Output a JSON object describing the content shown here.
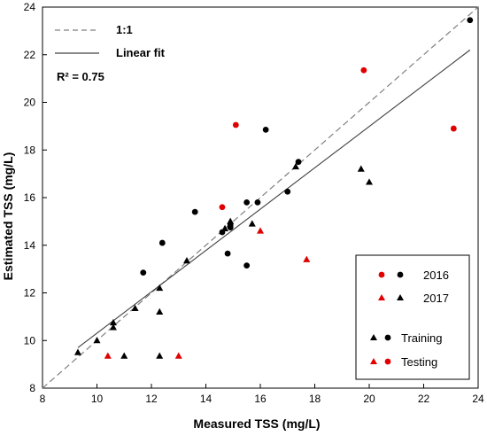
{
  "chart_data": {
    "type": "scatter",
    "xlabel": "Measured  TSS (mg/L)",
    "ylabel": "Estimated  TSS (mg/L)",
    "xlim": [
      8,
      24
    ],
    "ylim": [
      8,
      24
    ],
    "xticks": [
      "8",
      "10",
      "12",
      "14",
      "16",
      "18",
      "20",
      "22",
      "24"
    ],
    "yticks": [
      "8",
      "10",
      "12",
      "14",
      "16",
      "18",
      "20",
      "22",
      "24"
    ],
    "grid": false,
    "lines": {
      "one_to_one": {
        "label": "1:1",
        "style": "dashed",
        "color": "#808080"
      },
      "linear_fit": {
        "label": "Linear fit",
        "style": "solid",
        "color": "#404040",
        "x": [
          9.3,
          23.7
        ],
        "y": [
          9.7,
          22.2
        ]
      }
    },
    "r2_label": "R² = 0.75",
    "legend_box": {
      "entries": [
        {
          "label": "2016",
          "marker": "circle"
        },
        {
          "label": "2017",
          "marker": "triangle"
        },
        {
          "label": "Training",
          "color": "#000000"
        },
        {
          "label": "Testing",
          "color": "#e00000"
        }
      ],
      "position": "lower-right"
    },
    "colors": {
      "training": "#000000",
      "testing": "#e00000"
    },
    "series": [
      {
        "name": "2016 Training",
        "marker": "circle",
        "color": "#000000",
        "points": [
          [
            11.7,
            12.85
          ],
          [
            12.4,
            14.1
          ],
          [
            13.6,
            15.4
          ],
          [
            14.6,
            14.55
          ],
          [
            14.8,
            13.65
          ],
          [
            14.9,
            14.75
          ],
          [
            14.9,
            14.85
          ],
          [
            15.5,
            15.8
          ],
          [
            15.5,
            13.15
          ],
          [
            15.9,
            15.8
          ],
          [
            16.2,
            18.85
          ],
          [
            17.0,
            16.25
          ],
          [
            17.4,
            17.5
          ],
          [
            23.7,
            23.45
          ]
        ]
      },
      {
        "name": "2016 Testing",
        "marker": "circle",
        "color": "#e00000",
        "points": [
          [
            14.6,
            15.6
          ],
          [
            15.1,
            19.05
          ],
          [
            19.8,
            21.35
          ],
          [
            23.1,
            18.9
          ]
        ]
      },
      {
        "name": "2017 Training",
        "marker": "triangle",
        "color": "#000000",
        "points": [
          [
            9.3,
            9.5
          ],
          [
            10.0,
            10.0
          ],
          [
            10.6,
            10.55
          ],
          [
            10.6,
            10.75
          ],
          [
            11.0,
            9.35
          ],
          [
            11.4,
            11.35
          ],
          [
            12.3,
            11.2
          ],
          [
            12.3,
            12.2
          ],
          [
            12.3,
            9.35
          ],
          [
            13.3,
            13.35
          ],
          [
            14.7,
            14.7
          ],
          [
            14.9,
            15.0
          ],
          [
            15.7,
            14.9
          ],
          [
            17.3,
            17.3
          ],
          [
            19.7,
            17.2
          ],
          [
            20.0,
            16.65
          ]
        ]
      },
      {
        "name": "2017 Testing",
        "marker": "triangle",
        "color": "#e00000",
        "points": [
          [
            10.4,
            9.35
          ],
          [
            13.0,
            9.35
          ],
          [
            16.0,
            14.6
          ],
          [
            17.7,
            13.4
          ]
        ]
      }
    ]
  }
}
